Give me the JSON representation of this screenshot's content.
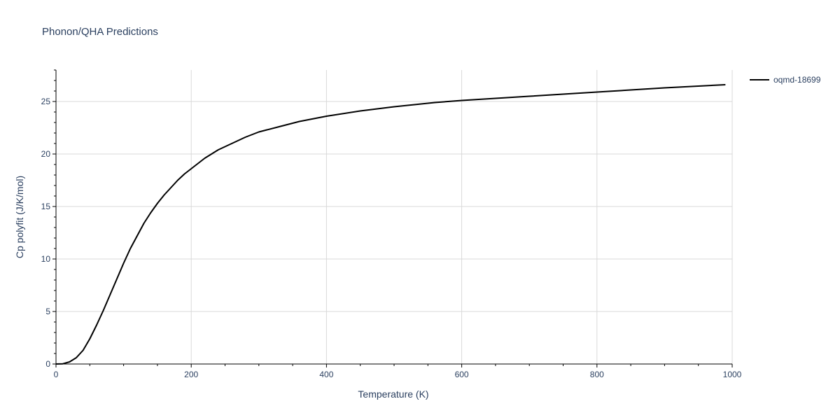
{
  "chart_data": {
    "type": "line",
    "title": "Phonon/QHA Predictions",
    "xlabel": "Temperature (K)",
    "ylabel": "Cp polyfit (J/K/mol)",
    "xlim": [
      0,
      1000
    ],
    "ylim": [
      0,
      28
    ],
    "xticks": [
      0,
      200,
      400,
      600,
      800,
      1000
    ],
    "yticks": [
      0,
      5,
      10,
      15,
      20,
      25
    ],
    "grid": true,
    "legend_position": "top-right",
    "series": [
      {
        "name": "oqmd-18699",
        "color": "#000000",
        "x": [
          0,
          10,
          20,
          30,
          40,
          50,
          60,
          70,
          80,
          90,
          100,
          110,
          120,
          130,
          140,
          150,
          160,
          170,
          180,
          190,
          200,
          220,
          240,
          260,
          280,
          300,
          330,
          360,
          400,
          450,
          500,
          560,
          600,
          700,
          800,
          900,
          990
        ],
        "y": [
          0,
          0.02,
          0.2,
          0.6,
          1.3,
          2.4,
          3.7,
          5.1,
          6.6,
          8.1,
          9.6,
          11.0,
          12.2,
          13.4,
          14.4,
          15.3,
          16.1,
          16.8,
          17.5,
          18.1,
          18.6,
          19.6,
          20.4,
          21.0,
          21.6,
          22.1,
          22.6,
          23.1,
          23.6,
          24.1,
          24.5,
          24.9,
          25.1,
          25.5,
          25.9,
          26.3,
          26.6
        ]
      }
    ]
  }
}
